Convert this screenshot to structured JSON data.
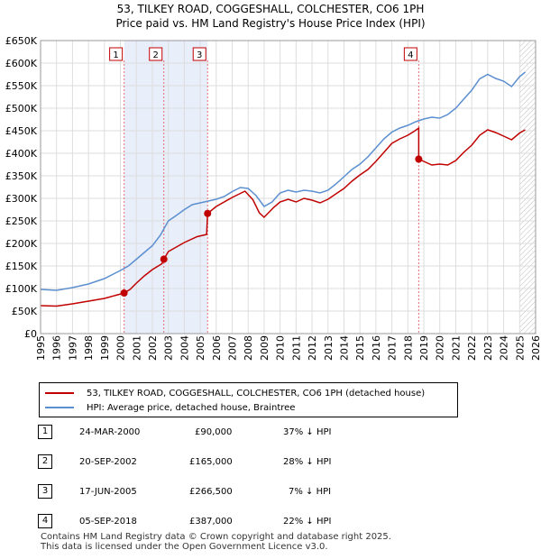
{
  "chart_data": {
    "type": "line",
    "title": "53, TILKEY ROAD, COGGESHALL, COLCHESTER, CO6 1PH",
    "subtitle": "Price paid vs. HM Land Registry's House Price Index (HPI)",
    "xlim": [
      1995,
      2026
    ],
    "ylim": [
      0,
      650000
    ],
    "y_ticks": [
      0,
      50000,
      100000,
      150000,
      200000,
      250000,
      300000,
      350000,
      400000,
      450000,
      500000,
      550000,
      600000,
      650000
    ],
    "y_tick_labels": [
      "£0",
      "£50K",
      "£100K",
      "£150K",
      "£200K",
      "£250K",
      "£300K",
      "£350K",
      "£400K",
      "£450K",
      "£500K",
      "£550K",
      "£600K",
      "£650K"
    ],
    "x_ticks": [
      "1995",
      "1996",
      "1997",
      "1998",
      "1999",
      "2000",
      "2001",
      "2002",
      "2003",
      "2004",
      "2005",
      "2006",
      "2007",
      "2008",
      "2009",
      "2010",
      "2011",
      "2012",
      "2013",
      "2014",
      "2015",
      "2016",
      "2017",
      "2018",
      "2019",
      "2020",
      "2021",
      "2022",
      "2023",
      "2024",
      "2025",
      "2026"
    ],
    "grid": true,
    "colors": {
      "property": "#c00000",
      "hpi": "#5b8fd0",
      "shade": "#e8eefa",
      "vline": "#e07070"
    },
    "series": [
      {
        "name": "53, TILKEY ROAD, COGGESHALL, COLCHESTER, CO6 1PH (detached house)",
        "points": [
          [
            1995.0,
            62000
          ],
          [
            1996.0,
            61000
          ],
          [
            1997.0,
            66000
          ],
          [
            1998.0,
            72000
          ],
          [
            1999.0,
            78000
          ],
          [
            2000.23,
            90000
          ],
          [
            2000.6,
            98000
          ],
          [
            2001.0,
            112000
          ],
          [
            2001.5,
            128000
          ],
          [
            2002.0,
            142000
          ],
          [
            2002.6,
            155000
          ],
          [
            2002.72,
            165000
          ],
          [
            2003.0,
            182000
          ],
          [
            2004.0,
            202000
          ],
          [
            2004.8,
            215000
          ],
          [
            2005.4,
            220000
          ],
          [
            2005.46,
            266500
          ],
          [
            2006.0,
            282000
          ],
          [
            2007.0,
            302000
          ],
          [
            2007.8,
            316000
          ],
          [
            2008.3,
            297000
          ],
          [
            2008.7,
            268000
          ],
          [
            2009.0,
            258000
          ],
          [
            2009.6,
            280000
          ],
          [
            2010.0,
            292000
          ],
          [
            2010.5,
            298000
          ],
          [
            2011.0,
            292000
          ],
          [
            2011.5,
            300000
          ],
          [
            2012.0,
            296000
          ],
          [
            2012.5,
            290000
          ],
          [
            2013.0,
            298000
          ],
          [
            2013.5,
            310000
          ],
          [
            2014.0,
            322000
          ],
          [
            2014.5,
            338000
          ],
          [
            2015.0,
            352000
          ],
          [
            2015.5,
            364000
          ],
          [
            2016.0,
            382000
          ],
          [
            2016.5,
            402000
          ],
          [
            2017.0,
            422000
          ],
          [
            2017.5,
            432000
          ],
          [
            2018.0,
            440000
          ],
          [
            2018.45,
            450000
          ],
          [
            2018.68,
            456000
          ],
          [
            2018.68,
            387000
          ],
          [
            2019.0,
            382000
          ],
          [
            2019.5,
            374000
          ],
          [
            2020.0,
            376000
          ],
          [
            2020.5,
            374000
          ],
          [
            2021.0,
            384000
          ],
          [
            2021.5,
            402000
          ],
          [
            2022.0,
            418000
          ],
          [
            2022.5,
            440000
          ],
          [
            2023.0,
            452000
          ],
          [
            2023.5,
            446000
          ],
          [
            2024.0,
            438000
          ],
          [
            2024.5,
            430000
          ],
          [
            2025.0,
            445000
          ],
          [
            2025.35,
            452000
          ]
        ]
      },
      {
        "name": "HPI: Average price, detached house, Braintree",
        "points": [
          [
            1995.0,
            98000
          ],
          [
            1996.0,
            96000
          ],
          [
            1997.0,
            102000
          ],
          [
            1998.0,
            110000
          ],
          [
            1999.0,
            122000
          ],
          [
            2000.0,
            140000
          ],
          [
            2000.5,
            150000
          ],
          [
            2001.0,
            165000
          ],
          [
            2001.5,
            180000
          ],
          [
            2002.0,
            195000
          ],
          [
            2002.5,
            218000
          ],
          [
            2003.0,
            250000
          ],
          [
            2003.5,
            262000
          ],
          [
            2004.0,
            275000
          ],
          [
            2004.5,
            286000
          ],
          [
            2005.0,
            290000
          ],
          [
            2005.5,
            294000
          ],
          [
            2006.0,
            298000
          ],
          [
            2006.5,
            304000
          ],
          [
            2007.0,
            315000
          ],
          [
            2007.5,
            324000
          ],
          [
            2008.0,
            322000
          ],
          [
            2008.5,
            306000
          ],
          [
            2009.0,
            282000
          ],
          [
            2009.5,
            292000
          ],
          [
            2010.0,
            312000
          ],
          [
            2010.5,
            318000
          ],
          [
            2011.0,
            314000
          ],
          [
            2011.5,
            318000
          ],
          [
            2012.0,
            316000
          ],
          [
            2012.5,
            312000
          ],
          [
            2013.0,
            318000
          ],
          [
            2013.5,
            332000
          ],
          [
            2014.0,
            348000
          ],
          [
            2014.5,
            364000
          ],
          [
            2015.0,
            376000
          ],
          [
            2015.5,
            392000
          ],
          [
            2016.0,
            412000
          ],
          [
            2016.5,
            432000
          ],
          [
            2017.0,
            447000
          ],
          [
            2017.5,
            456000
          ],
          [
            2018.0,
            462000
          ],
          [
            2018.5,
            470000
          ],
          [
            2019.0,
            476000
          ],
          [
            2019.5,
            480000
          ],
          [
            2020.0,
            478000
          ],
          [
            2020.5,
            486000
          ],
          [
            2021.0,
            500000
          ],
          [
            2021.5,
            520000
          ],
          [
            2022.0,
            540000
          ],
          [
            2022.5,
            565000
          ],
          [
            2023.0,
            575000
          ],
          [
            2023.5,
            566000
          ],
          [
            2024.0,
            560000
          ],
          [
            2024.5,
            548000
          ],
          [
            2025.0,
            570000
          ],
          [
            2025.35,
            580000
          ]
        ]
      }
    ],
    "sales": [
      {
        "label": "1",
        "x": 2000.23,
        "price": 90000
      },
      {
        "label": "2",
        "x": 2002.72,
        "price": 165000
      },
      {
        "label": "3",
        "x": 2005.46,
        "price": 266500
      },
      {
        "label": "4",
        "x": 2018.68,
        "price": 387000
      }
    ],
    "shaded_ranges": [
      [
        2000.23,
        2005.46
      ]
    ],
    "projection_start": 2025.0
  },
  "legend": {
    "property": "53, TILKEY ROAD, COGGESHALL, COLCHESTER, CO6 1PH (detached house)",
    "hpi": "HPI: Average price, detached house, Braintree"
  },
  "sales_table": [
    {
      "num": "1",
      "date": "24-MAR-2000",
      "price": "£90,000",
      "hpi": "37% ↓ HPI"
    },
    {
      "num": "2",
      "date": "20-SEP-2002",
      "price": "£165,000",
      "hpi": "28% ↓ HPI"
    },
    {
      "num": "3",
      "date": "17-JUN-2005",
      "price": "£266,500",
      "hpi": "7% ↓ HPI"
    },
    {
      "num": "4",
      "date": "05-SEP-2018",
      "price": "£387,000",
      "hpi": "22% ↓ HPI"
    }
  ],
  "footer": {
    "line1": "Contains HM Land Registry data © Crown copyright and database right 2025.",
    "line2": "This data is licensed under the Open Government Licence v3.0."
  }
}
